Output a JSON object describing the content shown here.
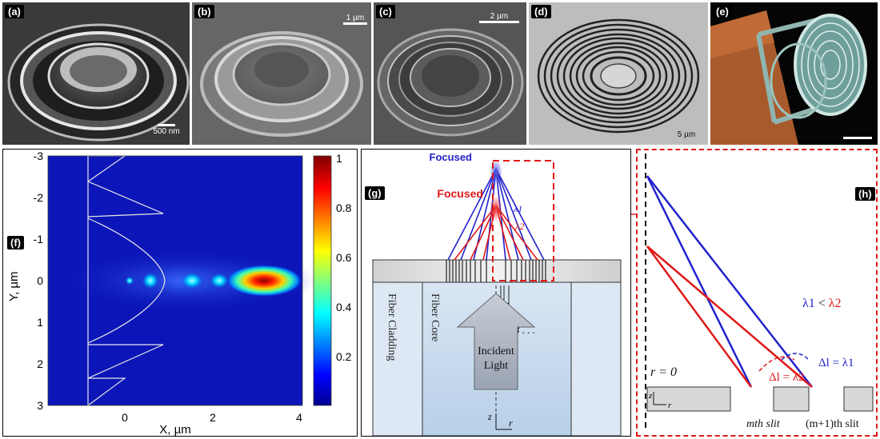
{
  "panels": {
    "a": {
      "label": "(a)",
      "scale": "500 nm"
    },
    "b": {
      "label": "(b)",
      "scale": "1 µm"
    },
    "c": {
      "label": "(c)",
      "scale": "2 µm"
    },
    "d": {
      "label": "(d)",
      "scale": "5 µm"
    },
    "e": {
      "label": "(e)"
    },
    "f": {
      "label": "(f)"
    },
    "g": {
      "label": "(g)"
    },
    "h": {
      "label": "(h)"
    }
  },
  "heatmap": {
    "ylabel": "Y, µm",
    "xlabel": "X, µm",
    "yticks": [
      "-3",
      "-2",
      "-1",
      "0",
      "1",
      "2",
      "3"
    ],
    "xticks": [
      "0",
      "2",
      "4"
    ],
    "colorbar_ticks": [
      "1",
      "0.8",
      "0.6",
      "0.4",
      "0.2"
    ]
  },
  "schematic_g": {
    "focused_blue": "Focused",
    "focused_red": "Focused",
    "lambda1": "λ1",
    "lambda2": "λ2",
    "r1": "r1",
    "r2": "r2",
    "r3": "r3 . . .",
    "cladding": "Fiber Cladding",
    "core": "Fiber Core",
    "incident1": "Incident",
    "incident2": "Light",
    "z": "z",
    "r": "r"
  },
  "schematic_h": {
    "relation_l1": "λ1",
    "relation_lt": " < ",
    "relation_l2": "λ2",
    "r0": "r = 0",
    "dl1": "Δl = λ1",
    "dl2": "Δl = λ2",
    "mslit": "mth slit",
    "m1slit": "(m+1)th slit",
    "z": "z",
    "r": "r"
  },
  "colors": {
    "blue": "#2222cc",
    "red": "#e01a1a",
    "dashed_red": "#e01a1a"
  }
}
